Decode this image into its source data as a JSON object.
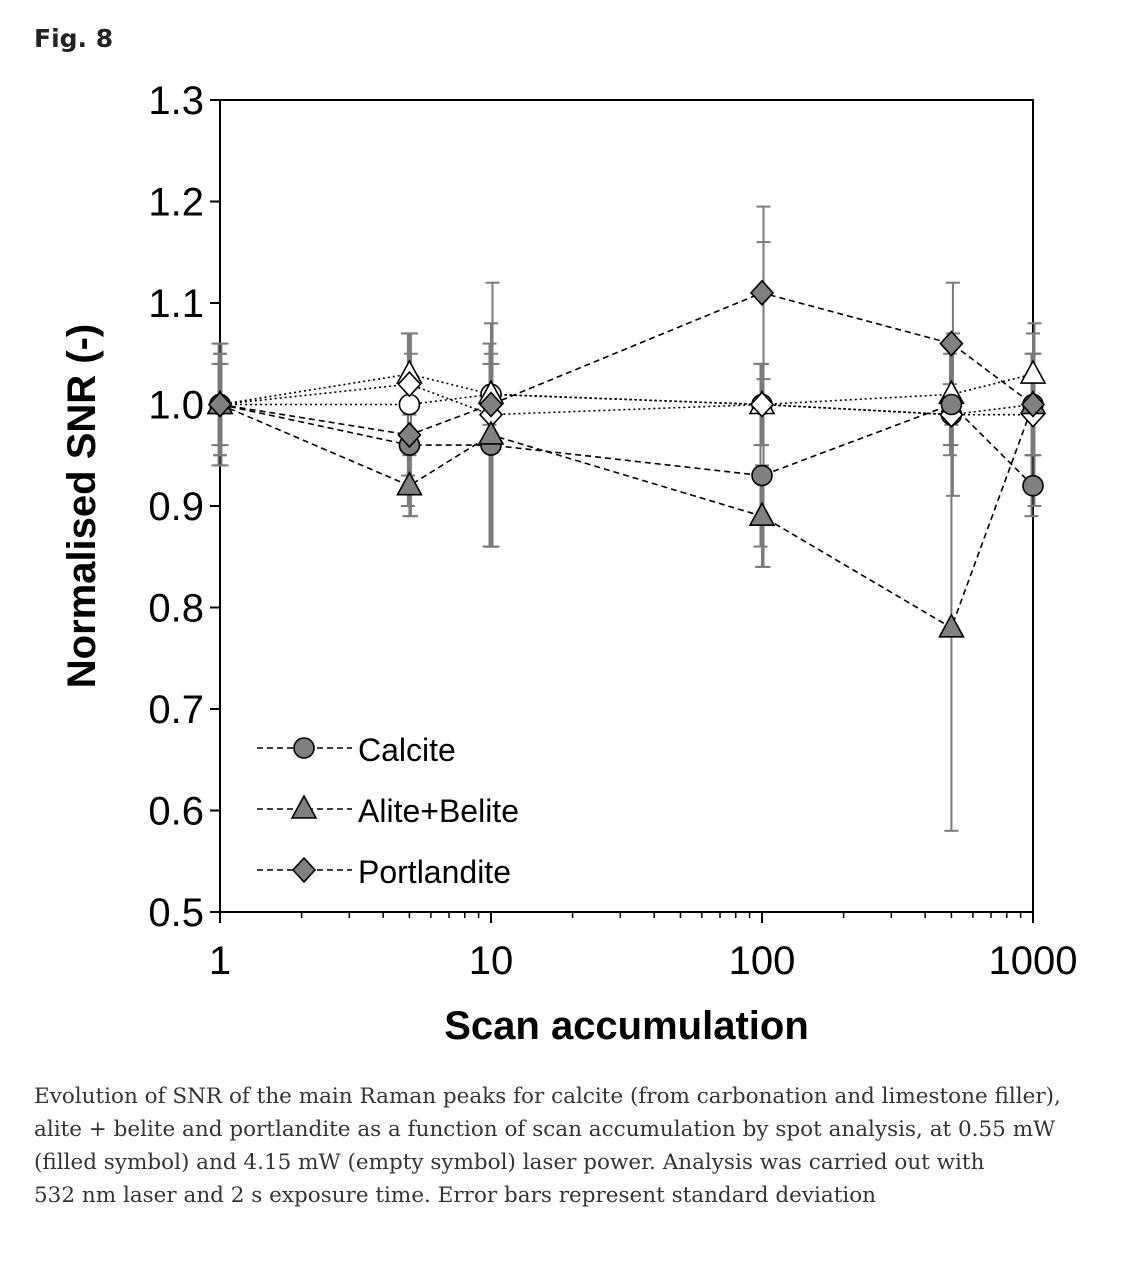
{
  "figure_label": "Fig. 8",
  "chart_data": {
    "type": "scatter",
    "xlabel": "Scan accumulation",
    "ylabel": "Normalised SNR (-)",
    "xscale": "log",
    "xlim": [
      1,
      1000
    ],
    "ylim": [
      0.5,
      1.3
    ],
    "x_ticks": [
      "1",
      "10",
      "100",
      "1000"
    ],
    "y_ticks": [
      "0.5",
      "0.6",
      "0.7",
      "0.8",
      "0.9",
      "1.0",
      "1.1",
      "1.2",
      "1.3"
    ],
    "legend_position": "bottom-left",
    "grid": false,
    "x": [
      1,
      5,
      10,
      100,
      500,
      1000
    ],
    "series": [
      {
        "name": "Calcite",
        "symbol": "circle",
        "fill": "filled",
        "line": "dashed",
        "values": [
          1.0,
          0.96,
          0.96,
          0.93,
          1.0,
          0.92
        ],
        "errors": [
          0.04,
          0.06,
          0.1,
          0.07,
          0.05,
          0.03
        ]
      },
      {
        "name": "Alite+Belite",
        "symbol": "triangle",
        "fill": "filled",
        "line": "dashed",
        "values": [
          1.0,
          0.92,
          0.97,
          0.89,
          0.78,
          1.0
        ],
        "errors": [
          0.05,
          0.03,
          0.11,
          0.05,
          0.2,
          0.05
        ]
      },
      {
        "name": "Portlandite",
        "symbol": "diamond",
        "fill": "filled",
        "line": "dashed",
        "values": [
          1.0,
          0.97,
          1.0,
          1.11,
          1.06,
          1.0
        ],
        "errors": [
          0.04,
          0.08,
          0.04,
          0.085,
          0.06,
          0.05
        ]
      },
      {
        "symbol": "circle",
        "fill": "empty",
        "line": "dotted",
        "values": [
          1.0,
          1.0,
          1.01,
          1.0,
          0.99,
          1.0
        ],
        "errors": [
          0.06,
          0.07,
          0.03,
          0.04,
          0.03,
          0.05
        ]
      },
      {
        "symbol": "triangle",
        "fill": "empty",
        "line": "dotted",
        "values": [
          1.0,
          1.03,
          1.01,
          1.0,
          1.01,
          1.03
        ],
        "errors": [
          0.05,
          0.04,
          0.04,
          0.04,
          0.05,
          0.04
        ]
      },
      {
        "symbol": "diamond",
        "fill": "empty",
        "line": "dotted",
        "values": [
          1.0,
          1.02,
          0.99,
          1.0,
          0.99,
          0.99
        ],
        "errors": [
          0.06,
          0.05,
          0.13,
          0.16,
          0.08,
          0.09
        ]
      }
    ],
    "colors": {
      "filled": "#808080",
      "empty": "#ffffff",
      "stroke": "#000000",
      "errorbar": "#7a7a7a"
    }
  },
  "caption_lines": [
    "Evolution of SNR of the main Raman peaks for calcite (from carbonation and limestone filler),",
    "alite + belite and portlandite as a function of scan accumulation by spot analysis, at 0.55 mW",
    "(filled symbol) and 4.15 mW (empty symbol) laser power. Analysis was carried out with",
    "532 nm laser and 2 s exposure time. Error bars represent standard deviation"
  ]
}
